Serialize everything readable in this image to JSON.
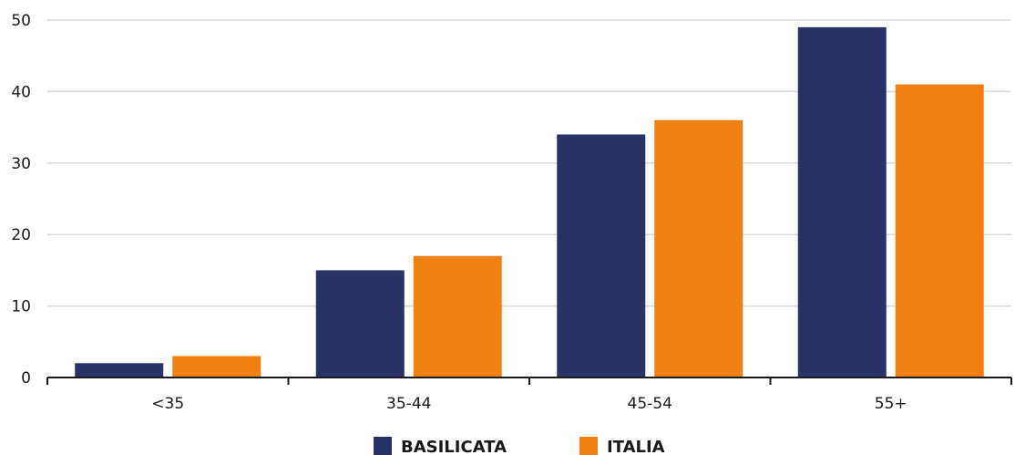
{
  "chart_data": {
    "type": "bar",
    "categories": [
      "<35",
      "35-44",
      "45-54",
      "55+"
    ],
    "series": [
      {
        "name": "BASILICATA",
        "color": "#283266",
        "values": [
          2,
          15,
          34,
          49
        ]
      },
      {
        "name": "ITALIA",
        "color": "#f08010",
        "values": [
          3,
          17,
          36,
          41
        ]
      }
    ],
    "ylim": [
      0,
      50
    ],
    "yticks": [
      "0",
      "10",
      "20",
      "30",
      "40",
      "50"
    ],
    "grid": true,
    "legend": "bottom-center",
    "title": "",
    "xlabel": "",
    "ylabel": ""
  }
}
